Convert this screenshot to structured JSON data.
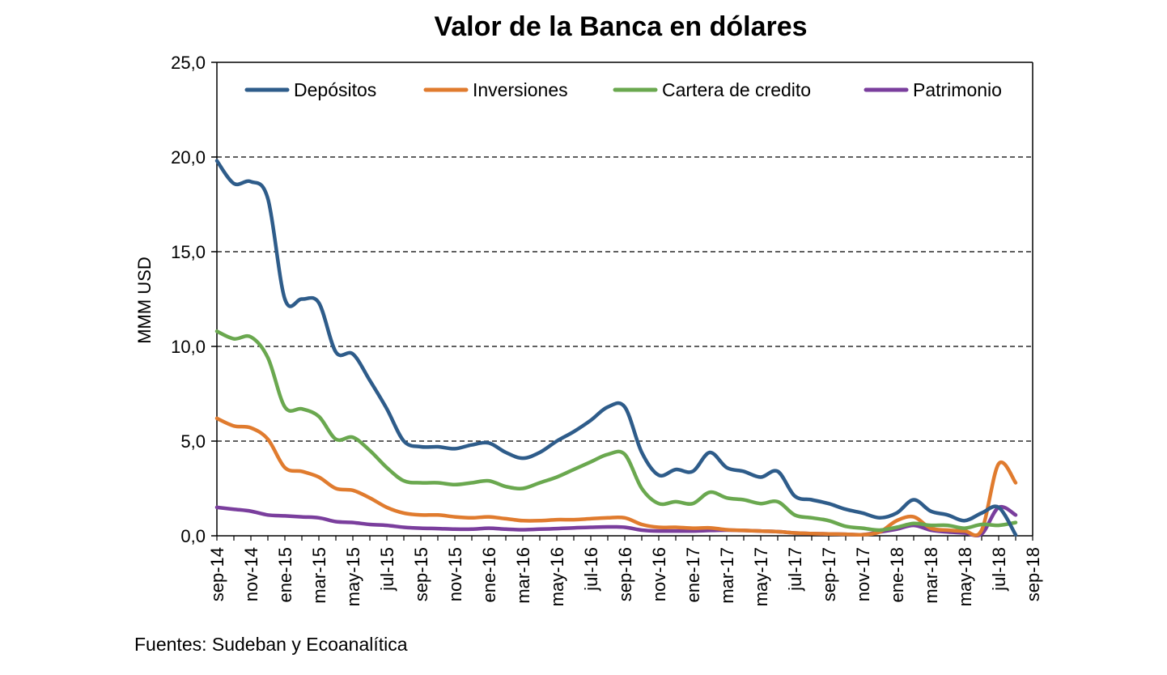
{
  "chart_data": {
    "type": "line",
    "title": "Valor de la Banca en dólares",
    "ylabel": "MMM USD",
    "xlabel": "",
    "ylim": [
      0,
      25
    ],
    "yticks": [
      "0,0",
      "5,0",
      "10,0",
      "15,0",
      "20,0",
      "25,0"
    ],
    "ytick_values": [
      0,
      5,
      10,
      15,
      20,
      25
    ],
    "grid": "horizontal dashed",
    "legend_position": "top",
    "x_tick_labels": [
      "sep-14",
      "nov-14",
      "ene-15",
      "mar-15",
      "may-15",
      "jul-15",
      "sep-15",
      "nov-15",
      "ene-16",
      "mar-16",
      "may-16",
      "jul-16",
      "sep-16",
      "nov-16",
      "ene-17",
      "mar-17",
      "may-17",
      "jul-17",
      "sep-17",
      "nov-17",
      "ene-18",
      "mar-18",
      "may-18",
      "jul-18",
      "sep-18"
    ],
    "n_points": 49,
    "series": [
      {
        "name": "Depósitos",
        "color": "#2E5C8A",
        "values": [
          19.8,
          18.6,
          18.7,
          17.8,
          12.5,
          12.5,
          12.3,
          9.7,
          9.6,
          8.2,
          6.7,
          5.0,
          4.7,
          4.7,
          4.6,
          4.8,
          4.9,
          4.4,
          4.1,
          4.4,
          5.0,
          5.5,
          6.1,
          6.8,
          6.8,
          4.4,
          3.2,
          3.5,
          3.4,
          4.4,
          3.6,
          3.4,
          3.1,
          3.4,
          2.1,
          1.9,
          1.7,
          1.4,
          1.2,
          0.95,
          1.2,
          1.9,
          1.3,
          1.1,
          0.8,
          1.2,
          1.5,
          0.05,
          null
        ]
      },
      {
        "name": "Inversiones",
        "color": "#E07B2E",
        "values": [
          6.2,
          5.8,
          5.7,
          5.1,
          3.6,
          3.4,
          3.1,
          2.5,
          2.4,
          2.0,
          1.5,
          1.2,
          1.1,
          1.1,
          1.0,
          0.95,
          1.0,
          0.9,
          0.8,
          0.8,
          0.85,
          0.85,
          0.9,
          0.95,
          0.95,
          0.6,
          0.45,
          0.45,
          0.4,
          0.42,
          0.32,
          0.28,
          0.25,
          0.22,
          0.15,
          0.12,
          0.1,
          0.08,
          0.06,
          0.2,
          0.8,
          1.0,
          0.4,
          0.3,
          0.25,
          0.3,
          3.8,
          2.8,
          null
        ]
      },
      {
        "name": "Cartera de credito",
        "color": "#6AA84F",
        "values": [
          10.8,
          10.4,
          10.5,
          9.4,
          6.8,
          6.7,
          6.3,
          5.1,
          5.2,
          4.5,
          3.6,
          2.9,
          2.8,
          2.8,
          2.7,
          2.8,
          2.9,
          2.6,
          2.5,
          2.8,
          3.1,
          3.5,
          3.9,
          4.3,
          4.3,
          2.5,
          1.7,
          1.8,
          1.7,
          2.3,
          2.0,
          1.9,
          1.7,
          1.8,
          1.1,
          0.95,
          0.8,
          0.5,
          0.4,
          0.3,
          0.45,
          0.65,
          0.55,
          0.55,
          0.4,
          0.6,
          0.55,
          0.7,
          null
        ]
      },
      {
        "name": "Patrimonio",
        "color": "#7A3E9D",
        "values": [
          1.5,
          1.4,
          1.3,
          1.1,
          1.05,
          1.0,
          0.95,
          0.75,
          0.7,
          0.6,
          0.55,
          0.45,
          0.4,
          0.38,
          0.35,
          0.35,
          0.4,
          0.35,
          0.32,
          0.35,
          0.38,
          0.42,
          0.45,
          0.47,
          0.45,
          0.3,
          0.25,
          0.25,
          0.25,
          0.28,
          0.3,
          0.28,
          0.25,
          0.22,
          0.15,
          0.12,
          0.1,
          0.08,
          0.06,
          0.2,
          0.35,
          0.55,
          0.3,
          0.2,
          0.15,
          0.1,
          1.5,
          1.1,
          null
        ]
      }
    ]
  },
  "source_note": "Fuentes: Sudeban y Ecoanalítica"
}
